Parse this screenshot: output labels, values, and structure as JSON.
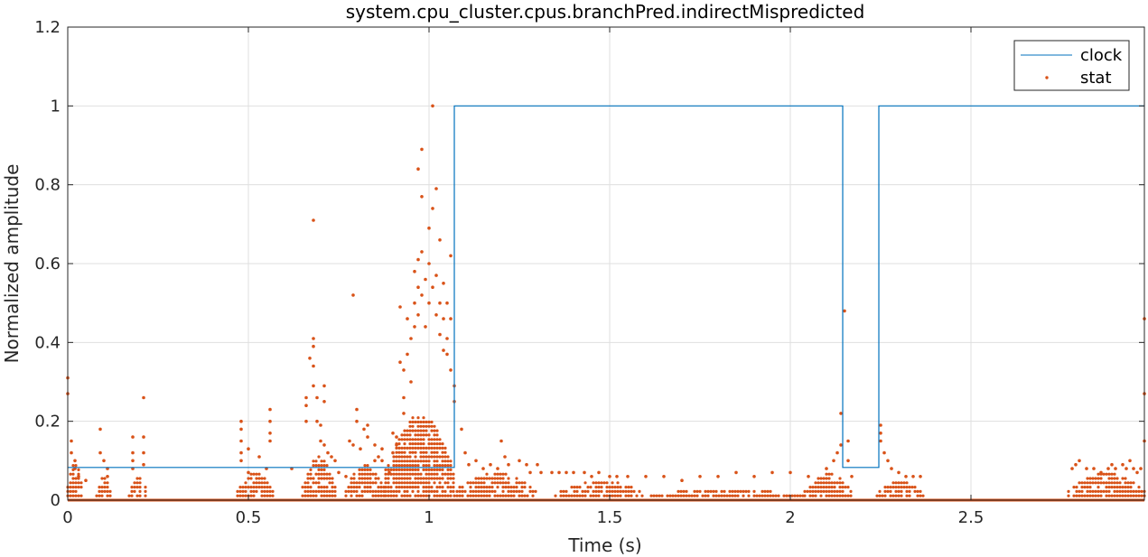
{
  "chart_data": {
    "type": "line+scatter",
    "title": "system.cpu_cluster.cpus.branchPred.indirectMispredicted",
    "xlabel": "Time (s)",
    "ylabel": "Normalized amplitude",
    "xlim": [
      0,
      2.98
    ],
    "ylim": [
      0,
      1.2
    ],
    "xticks": [
      0,
      0.5,
      1,
      1.5,
      2,
      2.5
    ],
    "xtick_labels": [
      "0",
      "0.5",
      "1",
      "1.5",
      "2",
      "2.5"
    ],
    "yticks": [
      0,
      0.2,
      0.4,
      0.6,
      0.8,
      1.0,
      1.2
    ],
    "ytick_labels": [
      "0",
      "0.2",
      "0.4",
      "0.6",
      "0.8",
      "1",
      "1.2"
    ],
    "grid": true,
    "legend_position": "top-right",
    "colors": {
      "clock": "#0072bd",
      "stat": "#d95319"
    },
    "series": [
      {
        "name": "clock",
        "kind": "step-line",
        "x": [
          0,
          0.645,
          0.645,
          1.07,
          1.07,
          2.145,
          2.145,
          2.245,
          2.245,
          2.98
        ],
        "y": [
          0.083,
          0.083,
          0.083,
          0.083,
          1.0,
          1.0,
          0.083,
          0.083,
          1.0,
          1.0
        ]
      },
      {
        "name": "stat",
        "kind": "scatter",
        "points": [
          [
            0.0,
            0.31
          ],
          [
            0.0,
            0.27
          ],
          [
            0.01,
            0.15
          ],
          [
            0.01,
            0.12
          ],
          [
            0.02,
            0.1
          ],
          [
            0.02,
            0.08
          ],
          [
            0.03,
            0.06
          ],
          [
            0.05,
            0.05
          ],
          [
            0.09,
            0.18
          ],
          [
            0.09,
            0.12
          ],
          [
            0.1,
            0.1
          ],
          [
            0.11,
            0.08
          ],
          [
            0.11,
            0.06
          ],
          [
            0.18,
            0.16
          ],
          [
            0.18,
            0.12
          ],
          [
            0.18,
            0.1
          ],
          [
            0.18,
            0.08
          ],
          [
            0.21,
            0.26
          ],
          [
            0.21,
            0.16
          ],
          [
            0.21,
            0.12
          ],
          [
            0.21,
            0.09
          ],
          [
            0.48,
            0.2
          ],
          [
            0.48,
            0.18
          ],
          [
            0.48,
            0.15
          ],
          [
            0.48,
            0.12
          ],
          [
            0.48,
            0.1
          ],
          [
            0.5,
            0.13
          ],
          [
            0.5,
            0.07
          ],
          [
            0.53,
            0.11
          ],
          [
            0.55,
            0.08
          ],
          [
            0.56,
            0.23
          ],
          [
            0.56,
            0.2
          ],
          [
            0.56,
            0.17
          ],
          [
            0.56,
            0.15
          ],
          [
            0.62,
            0.08
          ],
          [
            0.66,
            0.26
          ],
          [
            0.66,
            0.24
          ],
          [
            0.66,
            0.2
          ],
          [
            0.67,
            0.36
          ],
          [
            0.68,
            0.41
          ],
          [
            0.68,
            0.39
          ],
          [
            0.68,
            0.34
          ],
          [
            0.68,
            0.29
          ],
          [
            0.68,
            0.71
          ],
          [
            0.69,
            0.26
          ],
          [
            0.69,
            0.2
          ],
          [
            0.7,
            0.19
          ],
          [
            0.7,
            0.15
          ],
          [
            0.71,
            0.29
          ],
          [
            0.71,
            0.25
          ],
          [
            0.71,
            0.14
          ],
          [
            0.72,
            0.12
          ],
          [
            0.73,
            0.11
          ],
          [
            0.74,
            0.1
          ],
          [
            0.75,
            0.07
          ],
          [
            0.77,
            0.06
          ],
          [
            0.78,
            0.15
          ],
          [
            0.79,
            0.14
          ],
          [
            0.79,
            0.52
          ],
          [
            0.8,
            0.23
          ],
          [
            0.8,
            0.2
          ],
          [
            0.81,
            0.13
          ],
          [
            0.82,
            0.18
          ],
          [
            0.83,
            0.19
          ],
          [
            0.83,
            0.16
          ],
          [
            0.85,
            0.1
          ],
          [
            0.85,
            0.14
          ],
          [
            0.86,
            0.11
          ],
          [
            0.87,
            0.13
          ],
          [
            0.87,
            0.1
          ],
          [
            0.89,
            0.07
          ],
          [
            0.9,
            0.12
          ],
          [
            0.9,
            0.17
          ],
          [
            0.91,
            0.16
          ],
          [
            0.91,
            0.14
          ],
          [
            0.92,
            0.35
          ],
          [
            0.92,
            0.49
          ],
          [
            0.93,
            0.26
          ],
          [
            0.93,
            0.33
          ],
          [
            0.93,
            0.22
          ],
          [
            0.94,
            0.37
          ],
          [
            0.94,
            0.46
          ],
          [
            0.95,
            0.41
          ],
          [
            0.95,
            0.3
          ],
          [
            0.96,
            0.44
          ],
          [
            0.96,
            0.58
          ],
          [
            0.96,
            0.5
          ],
          [
            0.97,
            0.47
          ],
          [
            0.97,
            0.84
          ],
          [
            0.97,
            0.54
          ],
          [
            0.97,
            0.61
          ],
          [
            0.98,
            0.63
          ],
          [
            0.98,
            0.77
          ],
          [
            0.98,
            0.89
          ],
          [
            0.98,
            0.52
          ],
          [
            0.99,
            0.56
          ],
          [
            0.99,
            0.44
          ],
          [
            1.0,
            0.69
          ],
          [
            1.0,
            0.6
          ],
          [
            1.0,
            0.5
          ],
          [
            1.01,
            1.0
          ],
          [
            1.01,
            0.74
          ],
          [
            1.01,
            0.54
          ],
          [
            1.02,
            0.79
          ],
          [
            1.02,
            0.57
          ],
          [
            1.02,
            0.47
          ],
          [
            1.03,
            0.66
          ],
          [
            1.03,
            0.5
          ],
          [
            1.03,
            0.42
          ],
          [
            1.04,
            0.55
          ],
          [
            1.04,
            0.46
          ],
          [
            1.04,
            0.38
          ],
          [
            1.05,
            0.5
          ],
          [
            1.05,
            0.41
          ],
          [
            1.05,
            0.37
          ],
          [
            1.06,
            0.46
          ],
          [
            1.06,
            0.62
          ],
          [
            1.06,
            0.33
          ],
          [
            1.07,
            0.29
          ],
          [
            1.07,
            0.25
          ],
          [
            1.09,
            0.18
          ],
          [
            1.1,
            0.12
          ],
          [
            1.11,
            0.09
          ],
          [
            1.13,
            0.1
          ],
          [
            1.15,
            0.08
          ],
          [
            1.17,
            0.09
          ],
          [
            1.19,
            0.08
          ],
          [
            1.2,
            0.15
          ],
          [
            1.21,
            0.11
          ],
          [
            1.22,
            0.09
          ],
          [
            1.25,
            0.1
          ],
          [
            1.27,
            0.09
          ],
          [
            1.28,
            0.07
          ],
          [
            1.3,
            0.09
          ],
          [
            1.31,
            0.07
          ],
          [
            1.34,
            0.07
          ],
          [
            1.36,
            0.07
          ],
          [
            1.38,
            0.07
          ],
          [
            1.4,
            0.07
          ],
          [
            1.43,
            0.07
          ],
          [
            1.45,
            0.06
          ],
          [
            1.47,
            0.07
          ],
          [
            1.5,
            0.06
          ],
          [
            1.52,
            0.06
          ],
          [
            1.55,
            0.06
          ],
          [
            1.6,
            0.06
          ],
          [
            1.65,
            0.06
          ],
          [
            1.7,
            0.05
          ],
          [
            1.75,
            0.06
          ],
          [
            1.8,
            0.06
          ],
          [
            1.85,
            0.07
          ],
          [
            1.9,
            0.06
          ],
          [
            1.95,
            0.07
          ],
          [
            2.0,
            0.07
          ],
          [
            2.05,
            0.06
          ],
          [
            2.1,
            0.08
          ],
          [
            2.12,
            0.1
          ],
          [
            2.13,
            0.12
          ],
          [
            2.14,
            0.14
          ],
          [
            2.14,
            0.22
          ],
          [
            2.15,
            0.48
          ],
          [
            2.16,
            0.15
          ],
          [
            2.16,
            0.1
          ],
          [
            2.17,
            0.06
          ],
          [
            2.25,
            0.19
          ],
          [
            2.25,
            0.17
          ],
          [
            2.25,
            0.15
          ],
          [
            2.26,
            0.12
          ],
          [
            2.27,
            0.1
          ],
          [
            2.28,
            0.08
          ],
          [
            2.3,
            0.07
          ],
          [
            2.32,
            0.06
          ],
          [
            2.34,
            0.06
          ],
          [
            2.36,
            0.06
          ],
          [
            2.78,
            0.08
          ],
          [
            2.79,
            0.09
          ],
          [
            2.8,
            0.1
          ],
          [
            2.82,
            0.08
          ],
          [
            2.84,
            0.08
          ],
          [
            2.86,
            0.07
          ],
          [
            2.88,
            0.08
          ],
          [
            2.89,
            0.09
          ],
          [
            2.9,
            0.08
          ],
          [
            2.92,
            0.09
          ],
          [
            2.93,
            0.08
          ],
          [
            2.94,
            0.1
          ],
          [
            2.95,
            0.08
          ],
          [
            2.96,
            0.07
          ],
          [
            2.97,
            0.08
          ],
          [
            2.98,
            0.46
          ],
          [
            2.98,
            0.27
          ],
          [
            2.98,
            0.15
          ]
        ]
      }
    ],
    "dense_regions": [
      {
        "x_from": 0.0,
        "x_to": 0.04,
        "y_max": 0.1
      },
      {
        "x_from": 0.08,
        "x_to": 0.12,
        "y_max": 0.06
      },
      {
        "x_from": 0.17,
        "x_to": 0.22,
        "y_max": 0.06
      },
      {
        "x_from": 0.47,
        "x_to": 0.57,
        "y_max": 0.07
      },
      {
        "x_from": 0.65,
        "x_to": 0.74,
        "y_max": 0.11
      },
      {
        "x_from": 0.77,
        "x_to": 0.88,
        "y_max": 0.09
      },
      {
        "x_from": 0.88,
        "x_to": 1.07,
        "y_max": 0.22
      },
      {
        "x_from": 1.07,
        "x_to": 1.3,
        "y_max": 0.07
      },
      {
        "x_from": 1.35,
        "x_to": 1.6,
        "y_max": 0.05
      },
      {
        "x_from": 1.6,
        "x_to": 2.04,
        "y_max": 0.03
      },
      {
        "x_from": 2.04,
        "x_to": 2.17,
        "y_max": 0.07
      },
      {
        "x_from": 2.24,
        "x_to": 2.37,
        "y_max": 0.05
      },
      {
        "x_from": 2.77,
        "x_to": 2.98,
        "y_max": 0.07
      }
    ]
  }
}
